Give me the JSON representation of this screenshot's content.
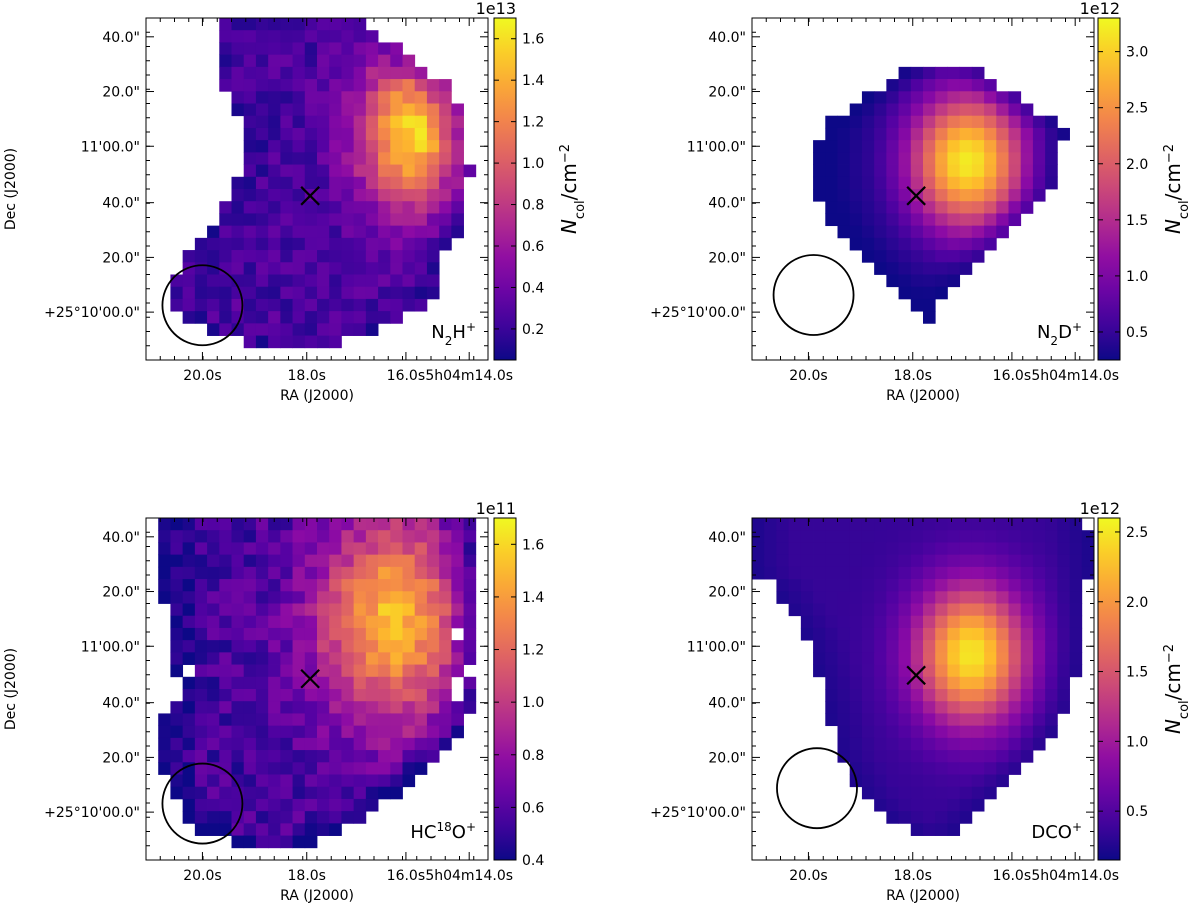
{
  "colors": {
    "colormap": "plasma",
    "marker": "#000000",
    "beam": "#000000",
    "background": "#ffffff"
  },
  "chart_data": [
    {
      "type": "heatmap",
      "panel_label": "N₂H⁺",
      "label_main": "N",
      "label_sub": "2",
      "label_tail": "H",
      "label_sup": "+",
      "colorbar_exponent": "1e13",
      "colorbar_label": "N_col/cm^-2",
      "clim": [
        0.05,
        1.7
      ],
      "colorbar_ticks": [
        "0.2",
        "0.4",
        "0.6",
        "0.8",
        "1.0",
        "1.2",
        "1.4",
        "1.6"
      ],
      "colorbar_tick_values": [
        0.2,
        0.4,
        0.6,
        0.8,
        1.0,
        1.2,
        1.4,
        1.6
      ],
      "xlabel": "RA (J2000)",
      "ylabel": "Dec (J2000)",
      "xticks": [
        "20.0s",
        "18.0s",
        "16.0s",
        "5h04m14.0s"
      ],
      "yticks": [
        "40.0\"",
        "20.0\"",
        "11'00.0\"",
        "40.0\"",
        "20.0\"",
        "+25°10'00.0\""
      ],
      "peak": [
        1.7,
        0.78,
        0.34
      ],
      "peak_width": [
        0.16,
        0.22
      ],
      "peak_value": 1.55,
      "base_value": 0.25,
      "noise": 0.15
    },
    {
      "type": "heatmap",
      "panel_label": "N₂D⁺",
      "label_main": "N",
      "label_sub": "2",
      "label_tail": "D",
      "label_sup": "+",
      "colorbar_exponent": "1e12",
      "colorbar_label": "N_col/cm^-2",
      "clim": [
        0.25,
        3.3
      ],
      "colorbar_ticks": [
        "0.5",
        "1.0",
        "1.5",
        "2.0",
        "2.5",
        "3.0"
      ],
      "colorbar_tick_values": [
        0.5,
        1.0,
        1.5,
        2.0,
        2.5,
        3.0
      ],
      "xlabel": "RA (J2000)",
      "ylabel": "",
      "xticks": [
        "20.0s",
        "18.0s",
        "16.0s",
        "5h04m14.0s"
      ],
      "yticks": [
        "40.0\"",
        "20.0\"",
        "11'00.0\"",
        "40.0\"",
        "20.0\"",
        "+25°10'00.0\""
      ],
      "peak": [
        3.3,
        0.63,
        0.42
      ],
      "peak_width": [
        0.17,
        0.2
      ],
      "peak_value": 3.2,
      "base_value": 0.3,
      "noise": 0.0
    },
    {
      "type": "heatmap",
      "panel_label": "HC¹⁸O⁺",
      "label_main": "HC",
      "label_sup1": "18",
      "label_tail": "O",
      "label_sup": "+",
      "colorbar_exponent": "1e11",
      "colorbar_label": "",
      "clim": [
        0.4,
        1.7
      ],
      "colorbar_ticks": [
        "0.4",
        "0.6",
        "0.8",
        "1.0",
        "1.2",
        "1.4",
        "1.6"
      ],
      "colorbar_tick_values": [
        0.4,
        0.6,
        0.8,
        1.0,
        1.2,
        1.4,
        1.6
      ],
      "xlabel": "RA (J2000)",
      "ylabel": "Dec (J2000)",
      "xticks": [
        "20.0s",
        "18.0s",
        "16.0s",
        "5h04m14.0s"
      ],
      "yticks": [
        "40.0\"",
        "20.0\"",
        "11'00.0\"",
        "40.0\"",
        "20.0\"",
        "+25°10'00.0\""
      ],
      "peak": [
        1.6,
        0.72,
        0.3
      ],
      "peak_width": [
        0.22,
        0.3
      ],
      "peak_value": 1.5,
      "base_value": 0.55,
      "noise": 0.18
    },
    {
      "type": "heatmap",
      "panel_label": "DCO⁺",
      "label_main": "DCO",
      "label_sup": "+",
      "colorbar_exponent": "1e12",
      "colorbar_label": "N_col/cm^-2",
      "clim": [
        0.15,
        2.6
      ],
      "colorbar_ticks": [
        "0.5",
        "1.0",
        "1.5",
        "2.0",
        "2.5"
      ],
      "colorbar_tick_values": [
        0.5,
        1.0,
        1.5,
        2.0,
        2.5
      ],
      "xlabel": "RA (J2000)",
      "ylabel": "",
      "xticks": [
        "20.0s",
        "18.0s",
        "16.0s",
        "5h04m14.0s"
      ],
      "yticks": [
        "40.0\"",
        "20.0\"",
        "11'00.0\"",
        "40.0\"",
        "20.0\"",
        "+25°10'00.0\""
      ],
      "peak": [
        2.6,
        0.64,
        0.4
      ],
      "peak_width": [
        0.16,
        0.2
      ],
      "peak_value": 2.5,
      "base_value": 0.35,
      "noise": 0.0
    }
  ]
}
